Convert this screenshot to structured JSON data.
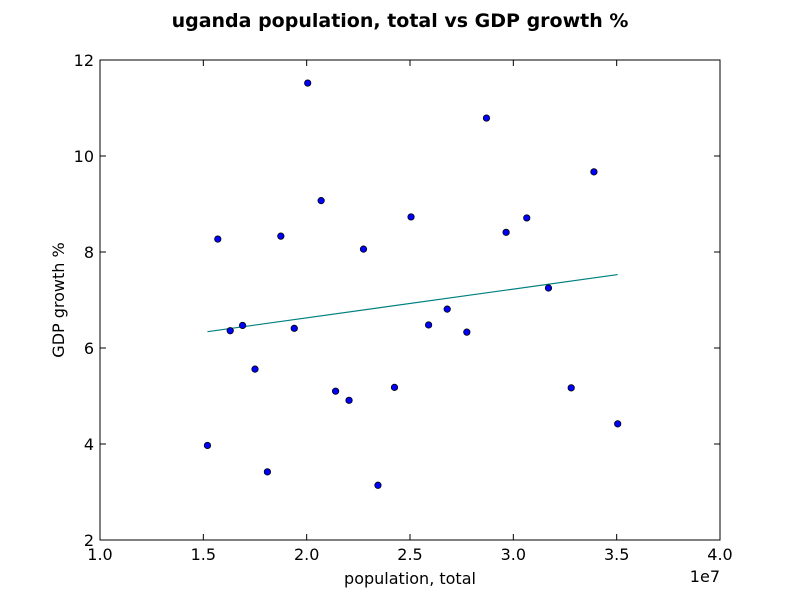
{
  "chart_data": {
    "type": "scatter",
    "title": "uganda population, total vs GDP growth %",
    "xlabel": "population, total",
    "ylabel": "GDP growth %",
    "x_offset_label": "1e7",
    "xlim": [
      10000000,
      40000000
    ],
    "ylim": [
      2,
      12
    ],
    "xticks": [
      10000000,
      15000000,
      20000000,
      25000000,
      30000000,
      35000000,
      40000000
    ],
    "xtick_labels": [
      "1.0",
      "1.5",
      "2.0",
      "2.5",
      "3.0",
      "3.5",
      "4.0"
    ],
    "yticks": [
      2,
      4,
      6,
      8,
      10,
      12
    ],
    "ytick_labels": [
      "2",
      "4",
      "6",
      "8",
      "10",
      "12"
    ],
    "grid": false,
    "points": [
      {
        "x": 15200000,
        "y": 3.97
      },
      {
        "x": 15700000,
        "y": 8.27
      },
      {
        "x": 16300000,
        "y": 6.36
      },
      {
        "x": 16900000,
        "y": 6.47
      },
      {
        "x": 17500000,
        "y": 5.56
      },
      {
        "x": 18100000,
        "y": 3.42
      },
      {
        "x": 18750000,
        "y": 8.33
      },
      {
        "x": 19400000,
        "y": 6.41
      },
      {
        "x": 20050000,
        "y": 11.52
      },
      {
        "x": 20700000,
        "y": 9.07
      },
      {
        "x": 21400000,
        "y": 5.1
      },
      {
        "x": 22050000,
        "y": 4.91
      },
      {
        "x": 22750000,
        "y": 8.06
      },
      {
        "x": 23450000,
        "y": 3.14
      },
      {
        "x": 24250000,
        "y": 5.18
      },
      {
        "x": 25050000,
        "y": 8.73
      },
      {
        "x": 25900000,
        "y": 6.48
      },
      {
        "x": 26800000,
        "y": 6.81
      },
      {
        "x": 27750000,
        "y": 6.33
      },
      {
        "x": 28700000,
        "y": 10.79
      },
      {
        "x": 29650000,
        "y": 8.41
      },
      {
        "x": 30650000,
        "y": 8.71
      },
      {
        "x": 31700000,
        "y": 7.25
      },
      {
        "x": 32800000,
        "y": 5.17
      },
      {
        "x": 33900000,
        "y": 9.67
      },
      {
        "x": 35050000,
        "y": 4.42
      }
    ],
    "trendline": {
      "x": [
        15200000,
        35050000
      ],
      "y": [
        6.34,
        7.53
      ]
    },
    "colors": {
      "marker_fill": "#0000ff",
      "marker_edge": "#000000",
      "trendline": "#008080",
      "axes": "#000000",
      "background": "#ffffff"
    }
  }
}
